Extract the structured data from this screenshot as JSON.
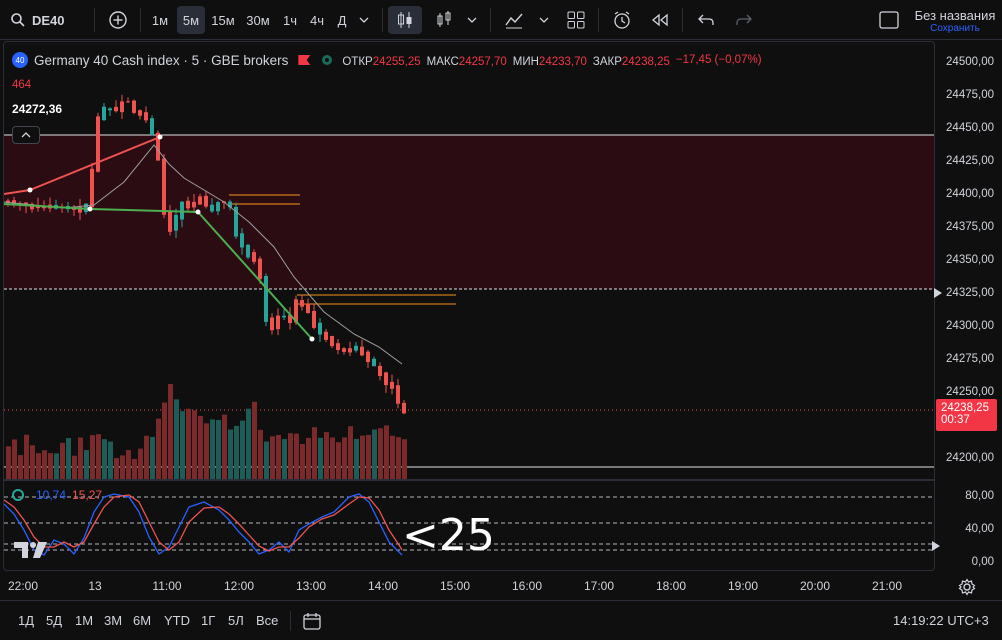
{
  "toolbar": {
    "symbol": "DE40",
    "intervals": [
      "1м",
      "5м",
      "15м",
      "30м",
      "1ч",
      "4ч",
      "Д"
    ],
    "active_interval": "5м",
    "layout_title": "Без названия",
    "layout_subtitle": "Сохранить"
  },
  "legend": {
    "badge": "40",
    "title": "Germany 40 Cash index · 5 · GBE brokers",
    "open_label": "ОТКР",
    "open_value": "24255,25",
    "high_label": "МАКС",
    "high_value": "24257,70",
    "low_label": "МИН",
    "low_value": "24233,70",
    "close_label": "ЗАКР",
    "close_value": "24238,25",
    "change": "−17,45 (−0,07%)",
    "volume": "464",
    "crosshair_price": "24272,36"
  },
  "price_axis": {
    "labels": [
      "24500,00",
      "24475,00",
      "24450,00",
      "24425,00",
      "24400,00",
      "24375,00",
      "24350,00",
      "24325,00",
      "24300,00",
      "24275,00",
      "24250,00",
      "24200,00"
    ],
    "current_price": "24238,25",
    "countdown": "00:37"
  },
  "oscillator": {
    "k_value": "10,74",
    "d_value": "15,27",
    "labels": [
      "80,00",
      "40,00",
      "0,00"
    ],
    "annotation": "<25"
  },
  "time_axis": {
    "labels": [
      "22:00",
      "13",
      "11:00",
      "12:00",
      "13:00",
      "14:00",
      "15:00",
      "16:00",
      "17:00",
      "18:00",
      "19:00",
      "20:00",
      "21:00"
    ]
  },
  "bottom": {
    "ranges": [
      "1Д",
      "5Д",
      "1М",
      "3М",
      "6М",
      "YTD",
      "1Г",
      "5Л",
      "Все"
    ],
    "clock": "14:19:22 UTC+3"
  },
  "colors": {
    "up": "#26a69a",
    "down": "#ef5350",
    "zone": "#2a0c12",
    "accent": "#2962ff"
  }
}
